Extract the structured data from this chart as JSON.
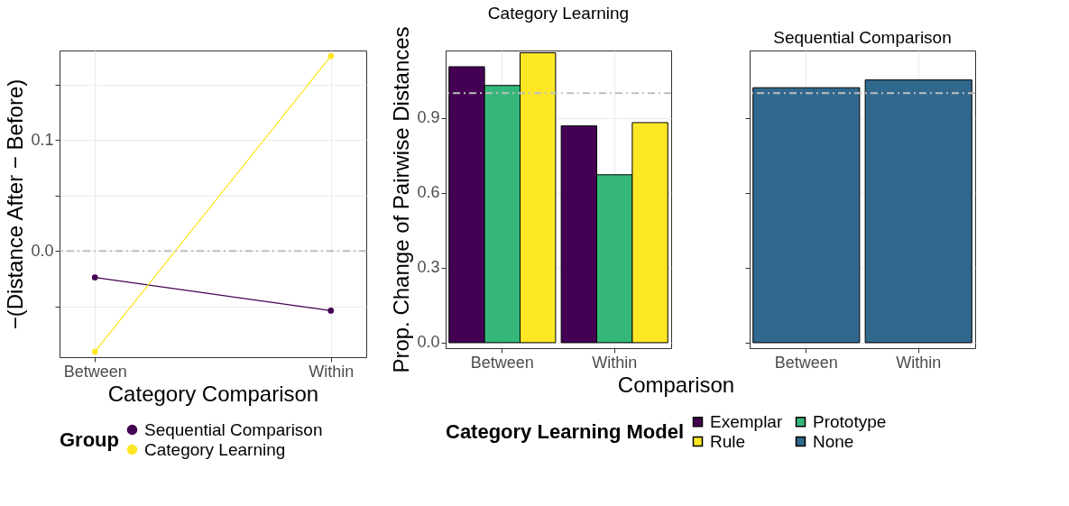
{
  "chart_data": [
    {
      "type": "line",
      "xlabel": "Category Comparison",
      "ylabel": "−(Distance After − Before)",
      "legend_title": "Group",
      "legend": "bottom",
      "grid": true,
      "marker": "circle",
      "categories": [
        "Between",
        "Within"
      ],
      "ylim": [
        -0.096,
        0.181
      ],
      "yticks": [
        {
          "value": -0.05,
          "label": null
        },
        {
          "value": 0,
          "label": "0.0"
        },
        {
          "value": 0.05,
          "label": null
        },
        0.1,
        {
          "value": 0.15,
          "label": null
        }
      ],
      "series": [
        {
          "name": "Sequential Comparison",
          "color": "#440154",
          "values": [
            -0.024,
            -0.054
          ]
        },
        {
          "name": "Category Learning",
          "color": "#fde725",
          "values": [
            -0.091,
            0.176
          ]
        }
      ],
      "ref_lines": [
        {
          "axis": "y",
          "value": 0,
          "label": null,
          "color": "#bebebe",
          "line_style": "dashdot"
        }
      ]
    },
    {
      "type": "bar",
      "title": "Category Learning",
      "xlabel": "Comparison",
      "ylabel": "Prop. Change of Pairwise Distances",
      "legend_title": "Category Learning Model",
      "legend": "bottom",
      "grid": true,
      "categories": [
        "Between",
        "Within"
      ],
      "ylim": [
        -0.022,
        1.171
      ],
      "yticks": [
        {
          "value": 0,
          "label": "0.0"
        },
        0.3,
        0.6,
        0.9
      ],
      "series": [
        {
          "name": "Exemplar",
          "color": "#440154",
          "values": [
            1.106,
            0.869
          ]
        },
        {
          "name": "Prototype",
          "color": "#35b779",
          "values": [
            1.031,
            0.673
          ]
        },
        {
          "name": "Rule",
          "color": "#fde725",
          "values": [
            1.162,
            0.882
          ]
        }
      ],
      "ref_lines": [
        {
          "axis": "y",
          "value": 1,
          "label": null,
          "color": "#bebebe",
          "line_style": "dashdot"
        }
      ]
    },
    {
      "type": "bar",
      "title": "Sequential Comparison",
      "grid": true,
      "tick_labels": "x",
      "categories": [
        "Between",
        "Within"
      ],
      "ylim": [
        -0.022,
        1.171
      ],
      "yticks": [
        0,
        0.3,
        0.6,
        0.9
      ],
      "series": [
        {
          "name": "None",
          "color": "#31688e",
          "values": [
            1.022,
            1.053
          ]
        }
      ],
      "ref_lines": [
        {
          "axis": "y",
          "value": 1,
          "label": null,
          "color": "#bebebe",
          "line_style": "dashdot"
        }
      ]
    }
  ]
}
